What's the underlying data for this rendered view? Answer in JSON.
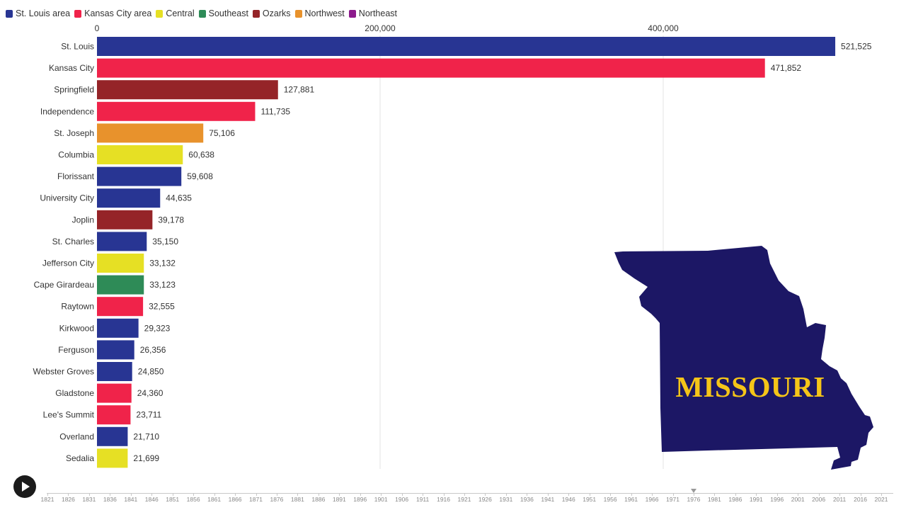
{
  "legend": [
    {
      "label": "St. Louis area",
      "color": "#283593"
    },
    {
      "label": "Kansas City area",
      "color": "#f0234a"
    },
    {
      "label": "Central",
      "color": "#e6e024"
    },
    {
      "label": "Southeast",
      "color": "#2e8b57"
    },
    {
      "label": "Ozarks",
      "color": "#952428"
    },
    {
      "label": "Northwest",
      "color": "#e8922c"
    },
    {
      "label": "Northeast",
      "color": "#8b1a8b"
    }
  ],
  "chart_data": {
    "type": "bar",
    "orientation": "horizontal",
    "x_ticks": [
      0,
      200000,
      400000
    ],
    "x_tick_labels": [
      "0",
      "200,000",
      "400,000"
    ],
    "grid": true,
    "legend_position": "top-left",
    "bars": [
      {
        "label": "St. Louis",
        "value": 521525,
        "value_label": "521,525",
        "region": "St. Louis area"
      },
      {
        "label": "Kansas City",
        "value": 471852,
        "value_label": "471,852",
        "region": "Kansas City area"
      },
      {
        "label": "Springfield",
        "value": 127881,
        "value_label": "127,881",
        "region": "Ozarks"
      },
      {
        "label": "Independence",
        "value": 111735,
        "value_label": "111,735",
        "region": "Kansas City area"
      },
      {
        "label": "St. Joseph",
        "value": 75106,
        "value_label": "75,106",
        "region": "Northwest"
      },
      {
        "label": "Columbia",
        "value": 60638,
        "value_label": "60,638",
        "region": "Central"
      },
      {
        "label": "Florissant",
        "value": 59608,
        "value_label": "59,608",
        "region": "St. Louis area"
      },
      {
        "label": "University City",
        "value": 44635,
        "value_label": "44,635",
        "region": "St. Louis area"
      },
      {
        "label": "Joplin",
        "value": 39178,
        "value_label": "39,178",
        "region": "Ozarks"
      },
      {
        "label": "St. Charles",
        "value": 35150,
        "value_label": "35,150",
        "region": "St. Louis area"
      },
      {
        "label": "Jefferson City",
        "value": 33132,
        "value_label": "33,132",
        "region": "Central"
      },
      {
        "label": "Cape Girardeau",
        "value": 33123,
        "value_label": "33,123",
        "region": "Southeast"
      },
      {
        "label": "Raytown",
        "value": 32555,
        "value_label": "32,555",
        "region": "Kansas City area"
      },
      {
        "label": "Kirkwood",
        "value": 29323,
        "value_label": "29,323",
        "region": "St. Louis area"
      },
      {
        "label": "Ferguson",
        "value": 26356,
        "value_label": "26,356",
        "region": "St. Louis area"
      },
      {
        "label": "Webster Groves",
        "value": 24850,
        "value_label": "24,850",
        "region": "St. Louis area"
      },
      {
        "label": "Gladstone",
        "value": 24360,
        "value_label": "24,360",
        "region": "Kansas City area"
      },
      {
        "label": "Lee's Summit",
        "value": 23711,
        "value_label": "23,711",
        "region": "Kansas City area"
      },
      {
        "label": "Overland",
        "value": 21710,
        "value_label": "21,710",
        "region": "St. Louis area"
      },
      {
        "label": "Sedalia",
        "value": 21699,
        "value_label": "21,699",
        "region": "Central"
      }
    ]
  },
  "map": {
    "label": "MISSOURI",
    "fill_color": "#1c1765",
    "text_color": "#f5c518"
  },
  "timeline": {
    "years": [
      "1821",
      "1826",
      "1831",
      "1836",
      "1841",
      "1846",
      "1851",
      "1856",
      "1861",
      "1866",
      "1871",
      "1876",
      "1881",
      "1886",
      "1891",
      "1896",
      "1901",
      "1906",
      "1911",
      "1916",
      "1921",
      "1926",
      "1931",
      "1936",
      "1941",
      "1946",
      "1951",
      "1956",
      "1961",
      "1966",
      "1971",
      "1976",
      "1981",
      "1986",
      "1991",
      "1996",
      "2001",
      "2006",
      "2011",
      "2016",
      "2021"
    ],
    "current_year": 1976
  },
  "controls": {
    "play_icon": "play-icon"
  }
}
